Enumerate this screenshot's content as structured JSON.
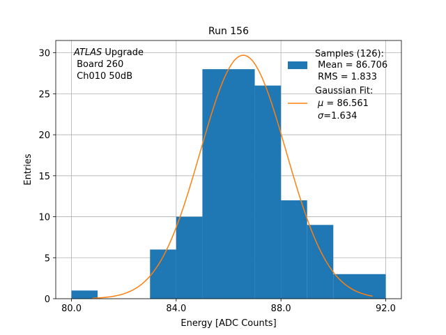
{
  "chart_data": {
    "type": "bar",
    "title": "Run 156",
    "xlabel": "Energy [ADC Counts]",
    "ylabel": "Entries",
    "xlim": [
      79.4,
      92.6
    ],
    "ylim": [
      0,
      31.5
    ],
    "grid": true,
    "xticks": [
      80.0,
      84.0,
      88.0,
      92.0
    ],
    "xtick_labels": [
      "80.0",
      "84.0",
      "88.0",
      "92.0"
    ],
    "yticks": [
      0,
      5,
      10,
      15,
      20,
      25,
      30
    ],
    "ytick_labels": [
      "0",
      "5",
      "10",
      "15",
      "20",
      "25",
      "30"
    ],
    "histogram": {
      "name": "Samples",
      "color": "#1f77b4",
      "bins": [
        {
          "x0": 80,
          "x1": 81,
          "value": 1
        },
        {
          "x0": 81,
          "x1": 82,
          "value": 0
        },
        {
          "x0": 82,
          "x1": 83,
          "value": 0
        },
        {
          "x0": 83,
          "x1": 84,
          "value": 6
        },
        {
          "x0": 84,
          "x1": 85,
          "value": 10
        },
        {
          "x0": 85,
          "x1": 87,
          "value": 28
        },
        {
          "x0": 87,
          "x1": 88,
          "value": 26
        },
        {
          "x0": 88,
          "x1": 89,
          "value": 12
        },
        {
          "x0": 89,
          "x1": 90,
          "value": 9
        },
        {
          "x0": 90,
          "x1": 92,
          "value": 3
        }
      ]
    },
    "fit": {
      "name": "Gaussian Fit",
      "color": "#ff7f0e",
      "amplitude": 29.7,
      "mu": 86.561,
      "sigma": 1.634,
      "x_start": 80.8,
      "x_end": 91.5
    },
    "annotation": {
      "italic": "ATLAS",
      "rest": " Upgrade",
      "line2": " Board 260",
      "line3": " Ch010 50dB"
    },
    "legend": {
      "position": "top-right",
      "samples_title": "Samples (126):",
      "samples_mean": " Mean = 86.706",
      "samples_rms": " RMS = 1.833",
      "fit_title": "Gaussian Fit:",
      "fit_mu_sym": "μ",
      "fit_mu_val": " = 86.561",
      "fit_sigma_sym": "σ",
      "fit_sigma_val": "=1.634"
    }
  }
}
